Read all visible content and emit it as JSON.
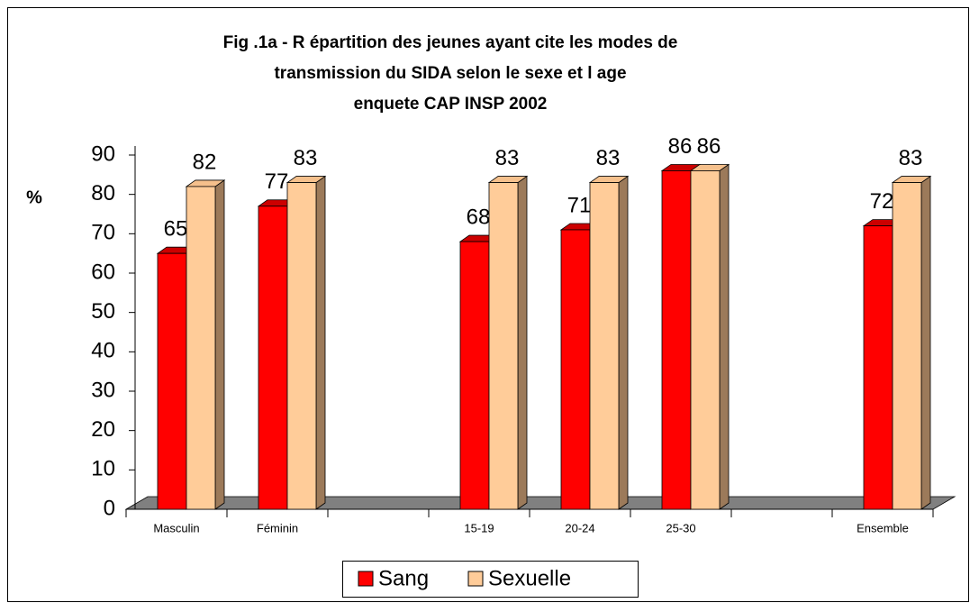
{
  "chart_data": {
    "type": "bar3d",
    "title": [
      "Fig .1a  - R épartition des jeunes ayant cite les modes de",
      "transmission du SIDA selon le sexe et l age",
      "enquete CAP INSP        2002"
    ],
    "ylabel": "%",
    "categories": [
      "Masculin",
      "Féminin",
      null,
      "15-19",
      "20-24",
      "25-30",
      null,
      "Ensemble"
    ],
    "series": [
      {
        "name": "Sang",
        "color": "#ff0000",
        "values": [
          65,
          77,
          null,
          68,
          71,
          86,
          null,
          72
        ]
      },
      {
        "name": "Sexuelle",
        "color": "#ffcc99",
        "values": [
          82,
          83,
          null,
          83,
          83,
          86,
          null,
          83
        ]
      }
    ],
    "ylim": [
      0,
      90
    ],
    "yticks": [
      0,
      10,
      20,
      30,
      40,
      50,
      60,
      70,
      80,
      90
    ],
    "legend": "bottom"
  }
}
